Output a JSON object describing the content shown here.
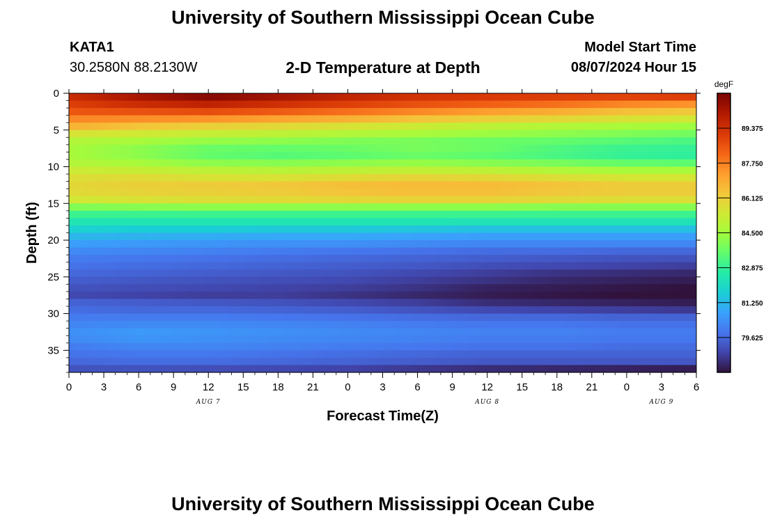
{
  "header": {
    "title": "University of Southern Mississippi Ocean Cube",
    "station_id": "KATA1",
    "station_coords": "30.2580N  88.2130W",
    "chart_title": "2-D Temperature at Depth",
    "model_start_label": "Model Start Time",
    "model_start_value": "08/07/2024 Hour 15"
  },
  "footer": {
    "title": "University of Southern Mississippi Ocean Cube"
  },
  "chart_data": {
    "type": "heatmap",
    "title": "2-D Temperature at Depth",
    "xlabel": "Forecast Time(Z)",
    "ylabel": "Depth (ft)",
    "x_ticks": [
      "0",
      "3",
      "6",
      "9",
      "12",
      "15",
      "18",
      "21",
      "0",
      "3",
      "6",
      "9",
      "12",
      "15",
      "18",
      "21",
      "0",
      "3",
      "6"
    ],
    "x_hours": [
      0,
      54
    ],
    "date_labels": [
      {
        "label": "AUG 7",
        "hour": 12
      },
      {
        "label": "AUG 8",
        "hour": 36
      },
      {
        "label": "AUG 9",
        "hour": 51
      }
    ],
    "y_ticks": [
      0,
      5,
      10,
      15,
      20,
      25,
      30,
      35
    ],
    "ylim": [
      0,
      38
    ],
    "y_inverted": true,
    "colorbar": {
      "unit": "degF",
      "min": 78.0,
      "max": 91.0,
      "tick_values": [
        79.625,
        81.25,
        82.875,
        84.5,
        86.125,
        87.75,
        89.375
      ],
      "tick_labels": [
        "79.625",
        "81.250",
        "82.875",
        "84.500",
        "86.125",
        "87.750",
        "89.375"
      ],
      "colors": [
        "#30123b",
        "#4145ab",
        "#4675ed",
        "#39a2fc",
        "#1bcfd4",
        "#24eca6",
        "#61fc6c",
        "#a4fc3b",
        "#d1e834",
        "#f3c63a",
        "#fe9b2d",
        "#f36315",
        "#d93806",
        "#b11901",
        "#7a0402"
      ]
    },
    "depths_ft": [
      0,
      1,
      2,
      3,
      4,
      5,
      6,
      7,
      8,
      9,
      10,
      11,
      12,
      13,
      14,
      15,
      16,
      17,
      18,
      19,
      20,
      21,
      22,
      23,
      24,
      25,
      26,
      27,
      28,
      29,
      30,
      31,
      32,
      33,
      34,
      35,
      36,
      37,
      38
    ],
    "hours": [
      0,
      6,
      12,
      18,
      24,
      30,
      36,
      42,
      48,
      54
    ],
    "temps_degF": [
      [
        89.5,
        90.2,
        90.8,
        90.3,
        89.7,
        89.3,
        89.1,
        89.0,
        88.9,
        89.0
      ],
      [
        89.0,
        89.5,
        89.8,
        89.4,
        89.0,
        88.6,
        88.3,
        88.0,
        87.6,
        87.4
      ],
      [
        88.5,
        88.6,
        88.7,
        88.4,
        88.0,
        87.6,
        87.2,
        86.9,
        86.5,
        86.3
      ],
      [
        87.6,
        87.5,
        87.4,
        87.1,
        86.8,
        86.4,
        86.1,
        85.9,
        85.6,
        85.4
      ],
      [
        86.8,
        86.4,
        86.1,
        85.9,
        85.6,
        85.3,
        85.0,
        84.8,
        84.6,
        84.4
      ],
      [
        85.6,
        85.4,
        85.2,
        85.0,
        84.8,
        84.6,
        84.4,
        84.2,
        84.0,
        83.8
      ],
      [
        84.8,
        84.6,
        84.3,
        84.2,
        84.0,
        83.9,
        83.7,
        83.6,
        83.4,
        83.2
      ],
      [
        84.6,
        84.2,
        83.7,
        83.6,
        83.7,
        83.9,
        83.7,
        83.3,
        83.0,
        82.9
      ],
      [
        84.6,
        84.2,
        83.6,
        83.4,
        83.5,
        83.7,
        83.5,
        83.2,
        82.9,
        82.8
      ],
      [
        84.8,
        84.6,
        84.2,
        84.1,
        84.2,
        84.3,
        84.1,
        83.9,
        83.6,
        83.5
      ],
      [
        85.3,
        85.2,
        85.0,
        84.9,
        85.0,
        85.1,
        85.0,
        84.8,
        84.6,
        84.6
      ],
      [
        85.7,
        85.8,
        85.6,
        85.6,
        85.8,
        86.0,
        85.9,
        85.7,
        85.5,
        85.5
      ],
      [
        85.9,
        86.1,
        86.2,
        86.3,
        86.5,
        86.6,
        86.6,
        86.4,
        86.2,
        86.2
      ],
      [
        85.8,
        86.0,
        86.1,
        86.2,
        86.4,
        86.5,
        86.5,
        86.3,
        86.2,
        86.2
      ],
      [
        85.4,
        85.6,
        85.7,
        85.8,
        85.9,
        86.0,
        86.0,
        85.8,
        85.7,
        85.7
      ],
      [
        84.0,
        84.1,
        84.2,
        84.2,
        84.2,
        84.2,
        84.2,
        84.1,
        84.1,
        84.1
      ],
      [
        83.0,
        83.0,
        83.0,
        83.0,
        83.0,
        83.0,
        83.0,
        83.0,
        83.0,
        83.0
      ],
      [
        82.4,
        82.4,
        82.4,
        82.4,
        82.4,
        82.4,
        82.3,
        82.3,
        82.3,
        82.3
      ],
      [
        81.8,
        81.7,
        81.7,
        81.6,
        81.6,
        81.5,
        81.4,
        81.4,
        81.4,
        81.4
      ],
      [
        81.2,
        81.1,
        81.0,
        80.9,
        80.9,
        80.8,
        80.7,
        80.7,
        80.7,
        80.7
      ],
      [
        80.7,
        80.6,
        80.5,
        80.4,
        80.4,
        80.3,
        80.2,
        80.2,
        80.2,
        80.2
      ],
      [
        80.3,
        80.2,
        80.1,
        80.0,
        79.9,
        79.8,
        79.7,
        79.7,
        79.6,
        79.6
      ],
      [
        80.0,
        79.9,
        79.8,
        79.7,
        79.6,
        79.5,
        79.4,
        79.3,
        79.2,
        79.2
      ],
      [
        79.8,
        79.7,
        79.6,
        79.5,
        79.4,
        79.3,
        79.1,
        79.0,
        78.9,
        78.8
      ],
      [
        79.6,
        79.5,
        79.4,
        79.3,
        79.2,
        79.0,
        78.8,
        78.6,
        78.5,
        78.4
      ],
      [
        79.4,
        79.3,
        79.2,
        79.1,
        79.0,
        78.8,
        78.6,
        78.4,
        78.3,
        78.2
      ],
      [
        79.2,
        79.1,
        79.0,
        78.9,
        78.8,
        78.6,
        78.3,
        78.2,
        78.1,
        78.0
      ],
      [
        79.0,
        78.9,
        78.8,
        78.8,
        78.6,
        78.4,
        78.2,
        78.1,
        78.0,
        77.9
      ],
      [
        79.5,
        79.4,
        79.3,
        79.2,
        79.0,
        78.8,
        78.5,
        78.4,
        78.3,
        78.2
      ],
      [
        79.7,
        79.6,
        79.6,
        79.5,
        79.4,
        79.2,
        79.0,
        78.9,
        78.8,
        78.7
      ],
      [
        80.0,
        80.0,
        80.0,
        79.9,
        79.8,
        79.7,
        79.6,
        79.6,
        79.5,
        79.5
      ],
      [
        80.2,
        80.3,
        80.3,
        80.2,
        80.1,
        80.0,
        79.9,
        79.9,
        79.8,
        79.8
      ],
      [
        80.4,
        80.6,
        80.5,
        80.4,
        80.3,
        80.2,
        80.1,
        80.1,
        80.0,
        80.0
      ],
      [
        80.3,
        80.5,
        80.4,
        80.3,
        80.2,
        80.1,
        80.0,
        80.0,
        79.9,
        79.9
      ],
      [
        80.0,
        80.2,
        80.2,
        80.1,
        80.0,
        79.9,
        79.8,
        79.8,
        79.7,
        79.7
      ],
      [
        79.8,
        79.9,
        79.9,
        79.8,
        79.7,
        79.6,
        79.5,
        79.5,
        79.5,
        79.5
      ],
      [
        79.6,
        79.7,
        79.7,
        79.6,
        79.5,
        79.4,
        79.3,
        79.3,
        79.3,
        79.3
      ],
      [
        79.2,
        79.2,
        79.1,
        79.0,
        78.9,
        78.7,
        78.5,
        78.4,
        78.3,
        78.2
      ],
      [
        78.6,
        78.5,
        78.4,
        78.3,
        78.2,
        78.0,
        77.8,
        77.7,
        77.6,
        77.5
      ]
    ]
  }
}
